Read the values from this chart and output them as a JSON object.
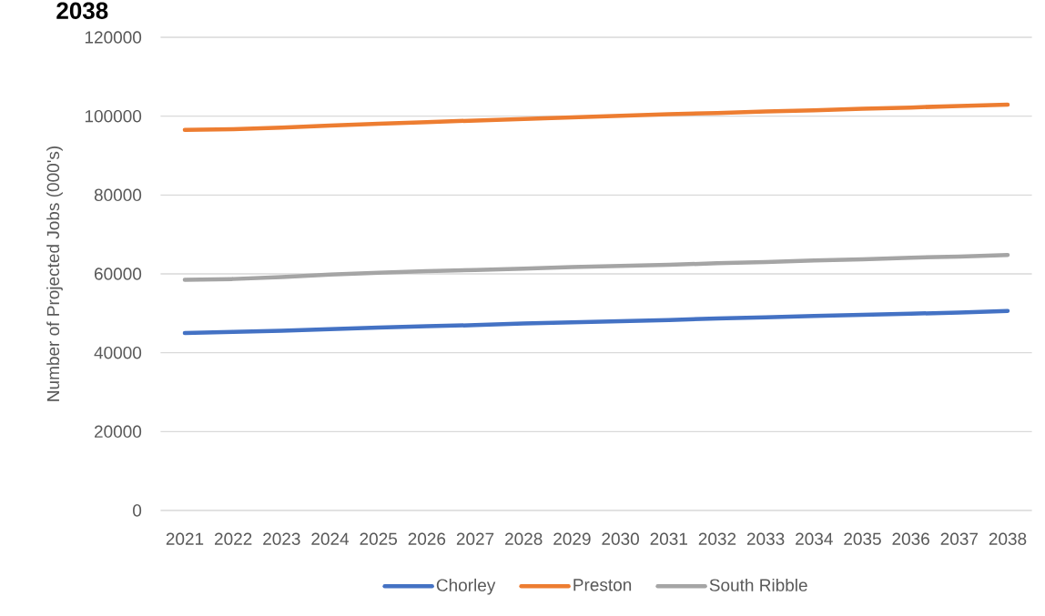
{
  "chart_data": {
    "type": "line",
    "title": "2038",
    "ylabel": "Number of Projected Jobs (000's)",
    "categories": [
      "2021",
      "2022",
      "2023",
      "2024",
      "2025",
      "2026",
      "2027",
      "2028",
      "2029",
      "2030",
      "2031",
      "2032",
      "2033",
      "2034",
      "2035",
      "2036",
      "2037",
      "2038"
    ],
    "series": [
      {
        "name": "Chorley",
        "color": "#4472c4",
        "values": [
          45000,
          45300,
          45600,
          46000,
          46400,
          46700,
          47000,
          47400,
          47700,
          48000,
          48300,
          48700,
          49000,
          49300,
          49600,
          49900,
          50200,
          50600
        ]
      },
      {
        "name": "Preston",
        "color": "#ed7d31",
        "values": [
          96500,
          96700,
          97100,
          97600,
          98100,
          98500,
          98900,
          99300,
          99700,
          100100,
          100500,
          100800,
          101200,
          101500,
          101900,
          102200,
          102600,
          102900
        ]
      },
      {
        "name": "South Ribble",
        "color": "#a5a5a5",
        "values": [
          58500,
          58700,
          59200,
          59800,
          60300,
          60700,
          61000,
          61300,
          61700,
          62000,
          62300,
          62700,
          63000,
          63400,
          63700,
          64100,
          64400,
          64800
        ]
      }
    ],
    "ylim": [
      0,
      120000
    ],
    "yticks": [
      0,
      20000,
      40000,
      60000,
      80000,
      100000,
      120000
    ],
    "grid": "y",
    "legend": "bottom",
    "marker": "none",
    "line_style": "solid"
  }
}
